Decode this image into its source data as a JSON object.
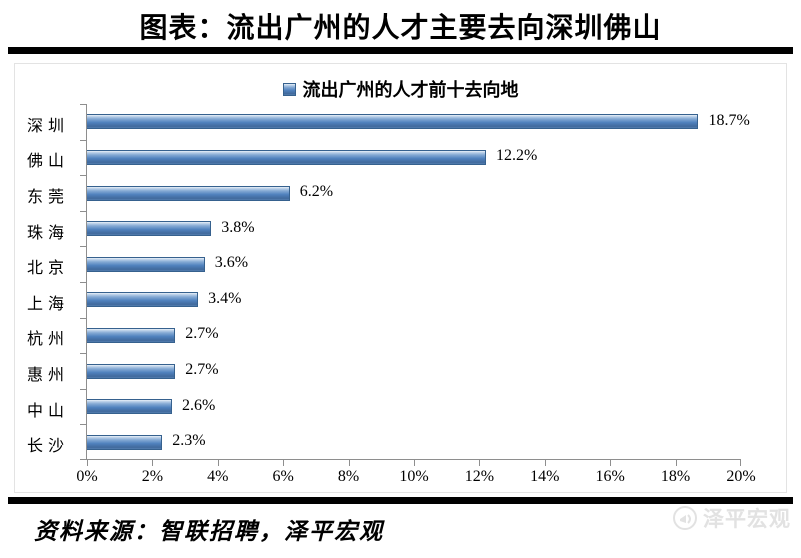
{
  "page": {
    "title": "图表：流出广州的人才主要去向深圳佛山",
    "source_label": "资料来源：智联招聘，泽平宏观",
    "watermark_label": "泽平宏观"
  },
  "chart_data": {
    "type": "bar",
    "orientation": "horizontal",
    "legend": "流出广州的人才前十去向地",
    "legend_position": "top",
    "categories": [
      "深圳",
      "佛山",
      "东莞",
      "珠海",
      "北京",
      "上海",
      "杭州",
      "惠州",
      "中山",
      "长沙"
    ],
    "values": [
      18.7,
      12.2,
      6.2,
      3.8,
      3.6,
      3.4,
      2.7,
      2.7,
      2.6,
      2.3
    ],
    "value_labels": [
      "18.7%",
      "12.2%",
      "6.2%",
      "3.8%",
      "3.6%",
      "3.4%",
      "2.7%",
      "2.7%",
      "2.6%",
      "2.3%"
    ],
    "x_ticks": [
      "0%",
      "2%",
      "4%",
      "6%",
      "8%",
      "10%",
      "12%",
      "14%",
      "16%",
      "18%",
      "20%"
    ],
    "xlim": [
      0,
      20
    ],
    "grid": false,
    "bar_color": "#4f81bd",
    "bar_border_color": "#36618e",
    "axis_color": "#8e8e8e"
  }
}
